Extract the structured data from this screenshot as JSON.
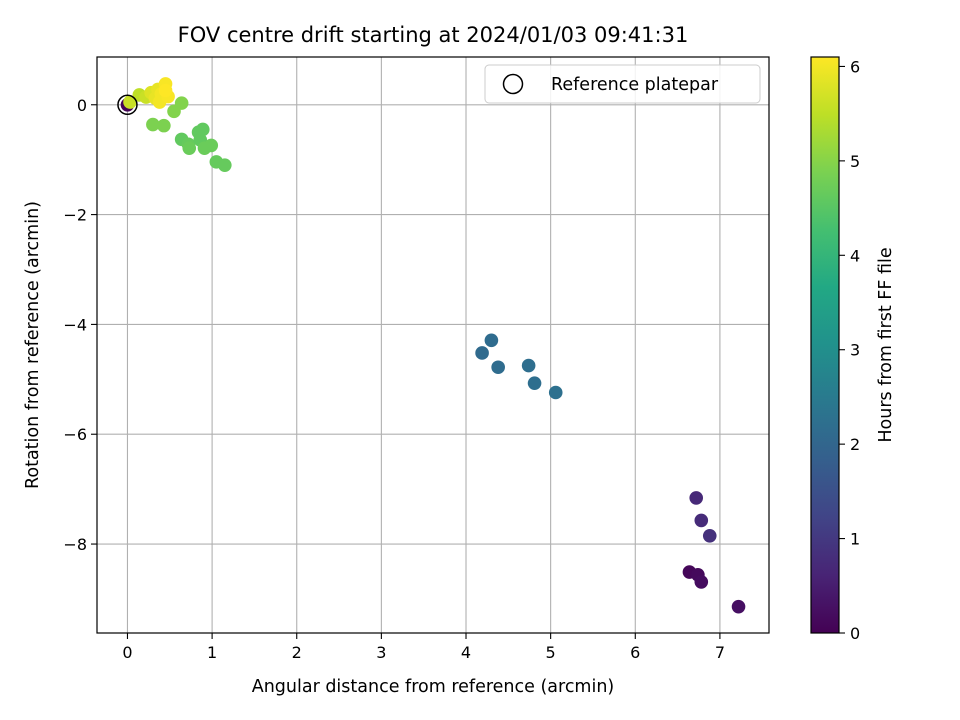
{
  "chart_data": {
    "type": "scatter",
    "title": "FOV centre drift starting at 2024/01/03 09:41:31",
    "xlabel": "Angular distance from reference (arcmin)",
    "ylabel": "Rotation from reference (arcmin)",
    "xlim": [
      -0.36,
      7.58
    ],
    "ylim": [
      -9.62,
      0.87
    ],
    "xticks": [
      0,
      1,
      2,
      3,
      4,
      5,
      6,
      7
    ],
    "yticks": [
      0,
      -2,
      -4,
      -6,
      -8
    ],
    "xtick_labels": [
      "0",
      "1",
      "2",
      "3",
      "4",
      "5",
      "6",
      "7"
    ],
    "ytick_labels": [
      "0",
      "−2",
      "−4",
      "−6",
      "−8"
    ],
    "grid": true,
    "legend": {
      "position": "top-right",
      "entries": [
        "Reference platepar"
      ]
    },
    "reference_point": {
      "x": 0,
      "y": 0
    },
    "colorbar": {
      "label": "Hours from first FF file",
      "colormap": "viridis",
      "range": [
        0,
        6.1
      ],
      "ticks": [
        0,
        1,
        2,
        3,
        4,
        5,
        6
      ],
      "tick_labels": [
        "0",
        "1",
        "2",
        "3",
        "4",
        "5",
        "6"
      ]
    },
    "points": [
      {
        "x": 0.0,
        "y": 0.0,
        "hours": 0.05
      },
      {
        "x": 6.64,
        "y": -8.51,
        "hours": 0.1
      },
      {
        "x": 6.74,
        "y": -8.56,
        "hours": 0.15
      },
      {
        "x": 6.78,
        "y": -8.69,
        "hours": 0.2
      },
      {
        "x": 7.22,
        "y": -9.14,
        "hours": 0.25
      },
      {
        "x": 6.72,
        "y": -7.16,
        "hours": 0.7
      },
      {
        "x": 6.78,
        "y": -7.57,
        "hours": 0.75
      },
      {
        "x": 6.88,
        "y": -7.85,
        "hours": 0.85
      },
      {
        "x": 4.19,
        "y": -4.52,
        "hours": 2.1
      },
      {
        "x": 4.3,
        "y": -4.29,
        "hours": 2.15
      },
      {
        "x": 4.38,
        "y": -4.78,
        "hours": 2.15
      },
      {
        "x": 4.74,
        "y": -4.75,
        "hours": 2.2
      },
      {
        "x": 4.81,
        "y": -5.07,
        "hours": 2.2
      },
      {
        "x": 5.06,
        "y": -5.24,
        "hours": 2.25
      },
      {
        "x": 0.64,
        "y": -0.63,
        "hours": 4.6
      },
      {
        "x": 0.72,
        "y": -0.72,
        "hours": 4.65
      },
      {
        "x": 0.73,
        "y": -0.79,
        "hours": 4.7
      },
      {
        "x": 0.84,
        "y": -0.5,
        "hours": 4.6
      },
      {
        "x": 0.86,
        "y": -0.64,
        "hours": 4.6
      },
      {
        "x": 0.89,
        "y": -0.45,
        "hours": 4.6
      },
      {
        "x": 0.91,
        "y": -0.79,
        "hours": 4.7
      },
      {
        "x": 0.99,
        "y": -0.74,
        "hours": 4.7
      },
      {
        "x": 1.05,
        "y": -1.04,
        "hours": 4.65
      },
      {
        "x": 1.15,
        "y": -1.1,
        "hours": 4.65
      },
      {
        "x": 0.3,
        "y": -0.36,
        "hours": 4.9
      },
      {
        "x": 0.43,
        "y": -0.38,
        "hours": 4.9
      },
      {
        "x": 0.55,
        "y": -0.12,
        "hours": 4.95
      },
      {
        "x": 0.64,
        "y": 0.03,
        "hours": 4.95
      },
      {
        "x": 0.14,
        "y": 0.18,
        "hours": 5.5
      },
      {
        "x": 0.22,
        "y": 0.14,
        "hours": 5.6
      },
      {
        "x": 0.03,
        "y": 0.05,
        "hours": 5.6
      },
      {
        "x": 0.28,
        "y": 0.22,
        "hours": 5.8
      },
      {
        "x": 0.33,
        "y": 0.12,
        "hours": 5.9
      },
      {
        "x": 0.36,
        "y": 0.28,
        "hours": 5.9
      },
      {
        "x": 0.38,
        "y": 0.05,
        "hours": 6.0
      },
      {
        "x": 0.4,
        "y": 0.2,
        "hours": 6.0
      },
      {
        "x": 0.45,
        "y": 0.38,
        "hours": 6.05
      },
      {
        "x": 0.48,
        "y": 0.15,
        "hours": 6.05
      },
      {
        "x": 0.45,
        "y": 0.26,
        "hours": 6.1
      }
    ]
  }
}
